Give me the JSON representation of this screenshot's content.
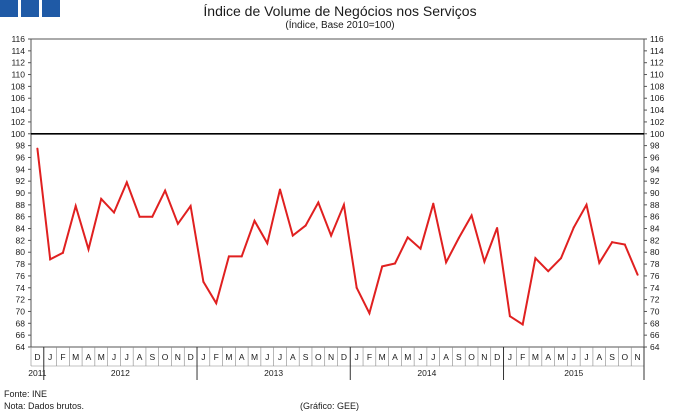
{
  "chart_data": {
    "type": "line",
    "title": "Índice de Volume de Negócios nos Serviços",
    "subtitle": "(Índice, Base 2010=100)",
    "ylim": [
      64,
      116
    ],
    "yticks": [
      64,
      66,
      68,
      70,
      72,
      74,
      76,
      78,
      80,
      82,
      84,
      86,
      88,
      90,
      92,
      94,
      96,
      98,
      100,
      102,
      104,
      106,
      108,
      110,
      112,
      114,
      116
    ],
    "reference_line": 100,
    "month_labels": [
      "D",
      "J",
      "F",
      "M",
      "A",
      "M",
      "J",
      "J",
      "A",
      "S",
      "O",
      "N",
      "D",
      "J",
      "F",
      "M",
      "A",
      "M",
      "J",
      "J",
      "A",
      "S",
      "O",
      "N",
      "D",
      "J",
      "F",
      "M",
      "A",
      "M",
      "J",
      "J",
      "A",
      "S",
      "O",
      "N",
      "D",
      "J",
      "F",
      "M",
      "A",
      "M",
      "J",
      "J",
      "A",
      "S",
      "O",
      "N"
    ],
    "years": [
      {
        "label": "2011",
        "start": 0,
        "end": 0
      },
      {
        "label": "2012",
        "start": 1,
        "end": 12
      },
      {
        "label": "2013",
        "start": 13,
        "end": 24
      },
      {
        "label": "2014",
        "start": 25,
        "end": 36
      },
      {
        "label": "2015",
        "start": 37,
        "end": 47
      }
    ],
    "series": [
      {
        "name": "Índice de Volume de Negócios nos Serviços",
        "color": "#e02020",
        "values": [
          97.5,
          78.8,
          79.9,
          87.8,
          80.5,
          89.0,
          86.7,
          91.8,
          86.0,
          86.0,
          90.4,
          84.8,
          87.8,
          75.0,
          71.4,
          79.3,
          79.3,
          85.3,
          81.5,
          90.6,
          82.8,
          84.5,
          88.4,
          82.8,
          88.0,
          74.0,
          69.7,
          77.6,
          78.1,
          82.5,
          80.6,
          88.2,
          78.3,
          82.4,
          86.2,
          78.4,
          84.1,
          69.2,
          67.8,
          79.0,
          76.8,
          79.0,
          84.2,
          88.0,
          78.2,
          81.7,
          81.3,
          76.2
        ]
      }
    ]
  },
  "footer": {
    "source": "Fonte: INE",
    "note": "Nota: Dados brutos.",
    "credit": "(Gráfico: GEE)"
  }
}
